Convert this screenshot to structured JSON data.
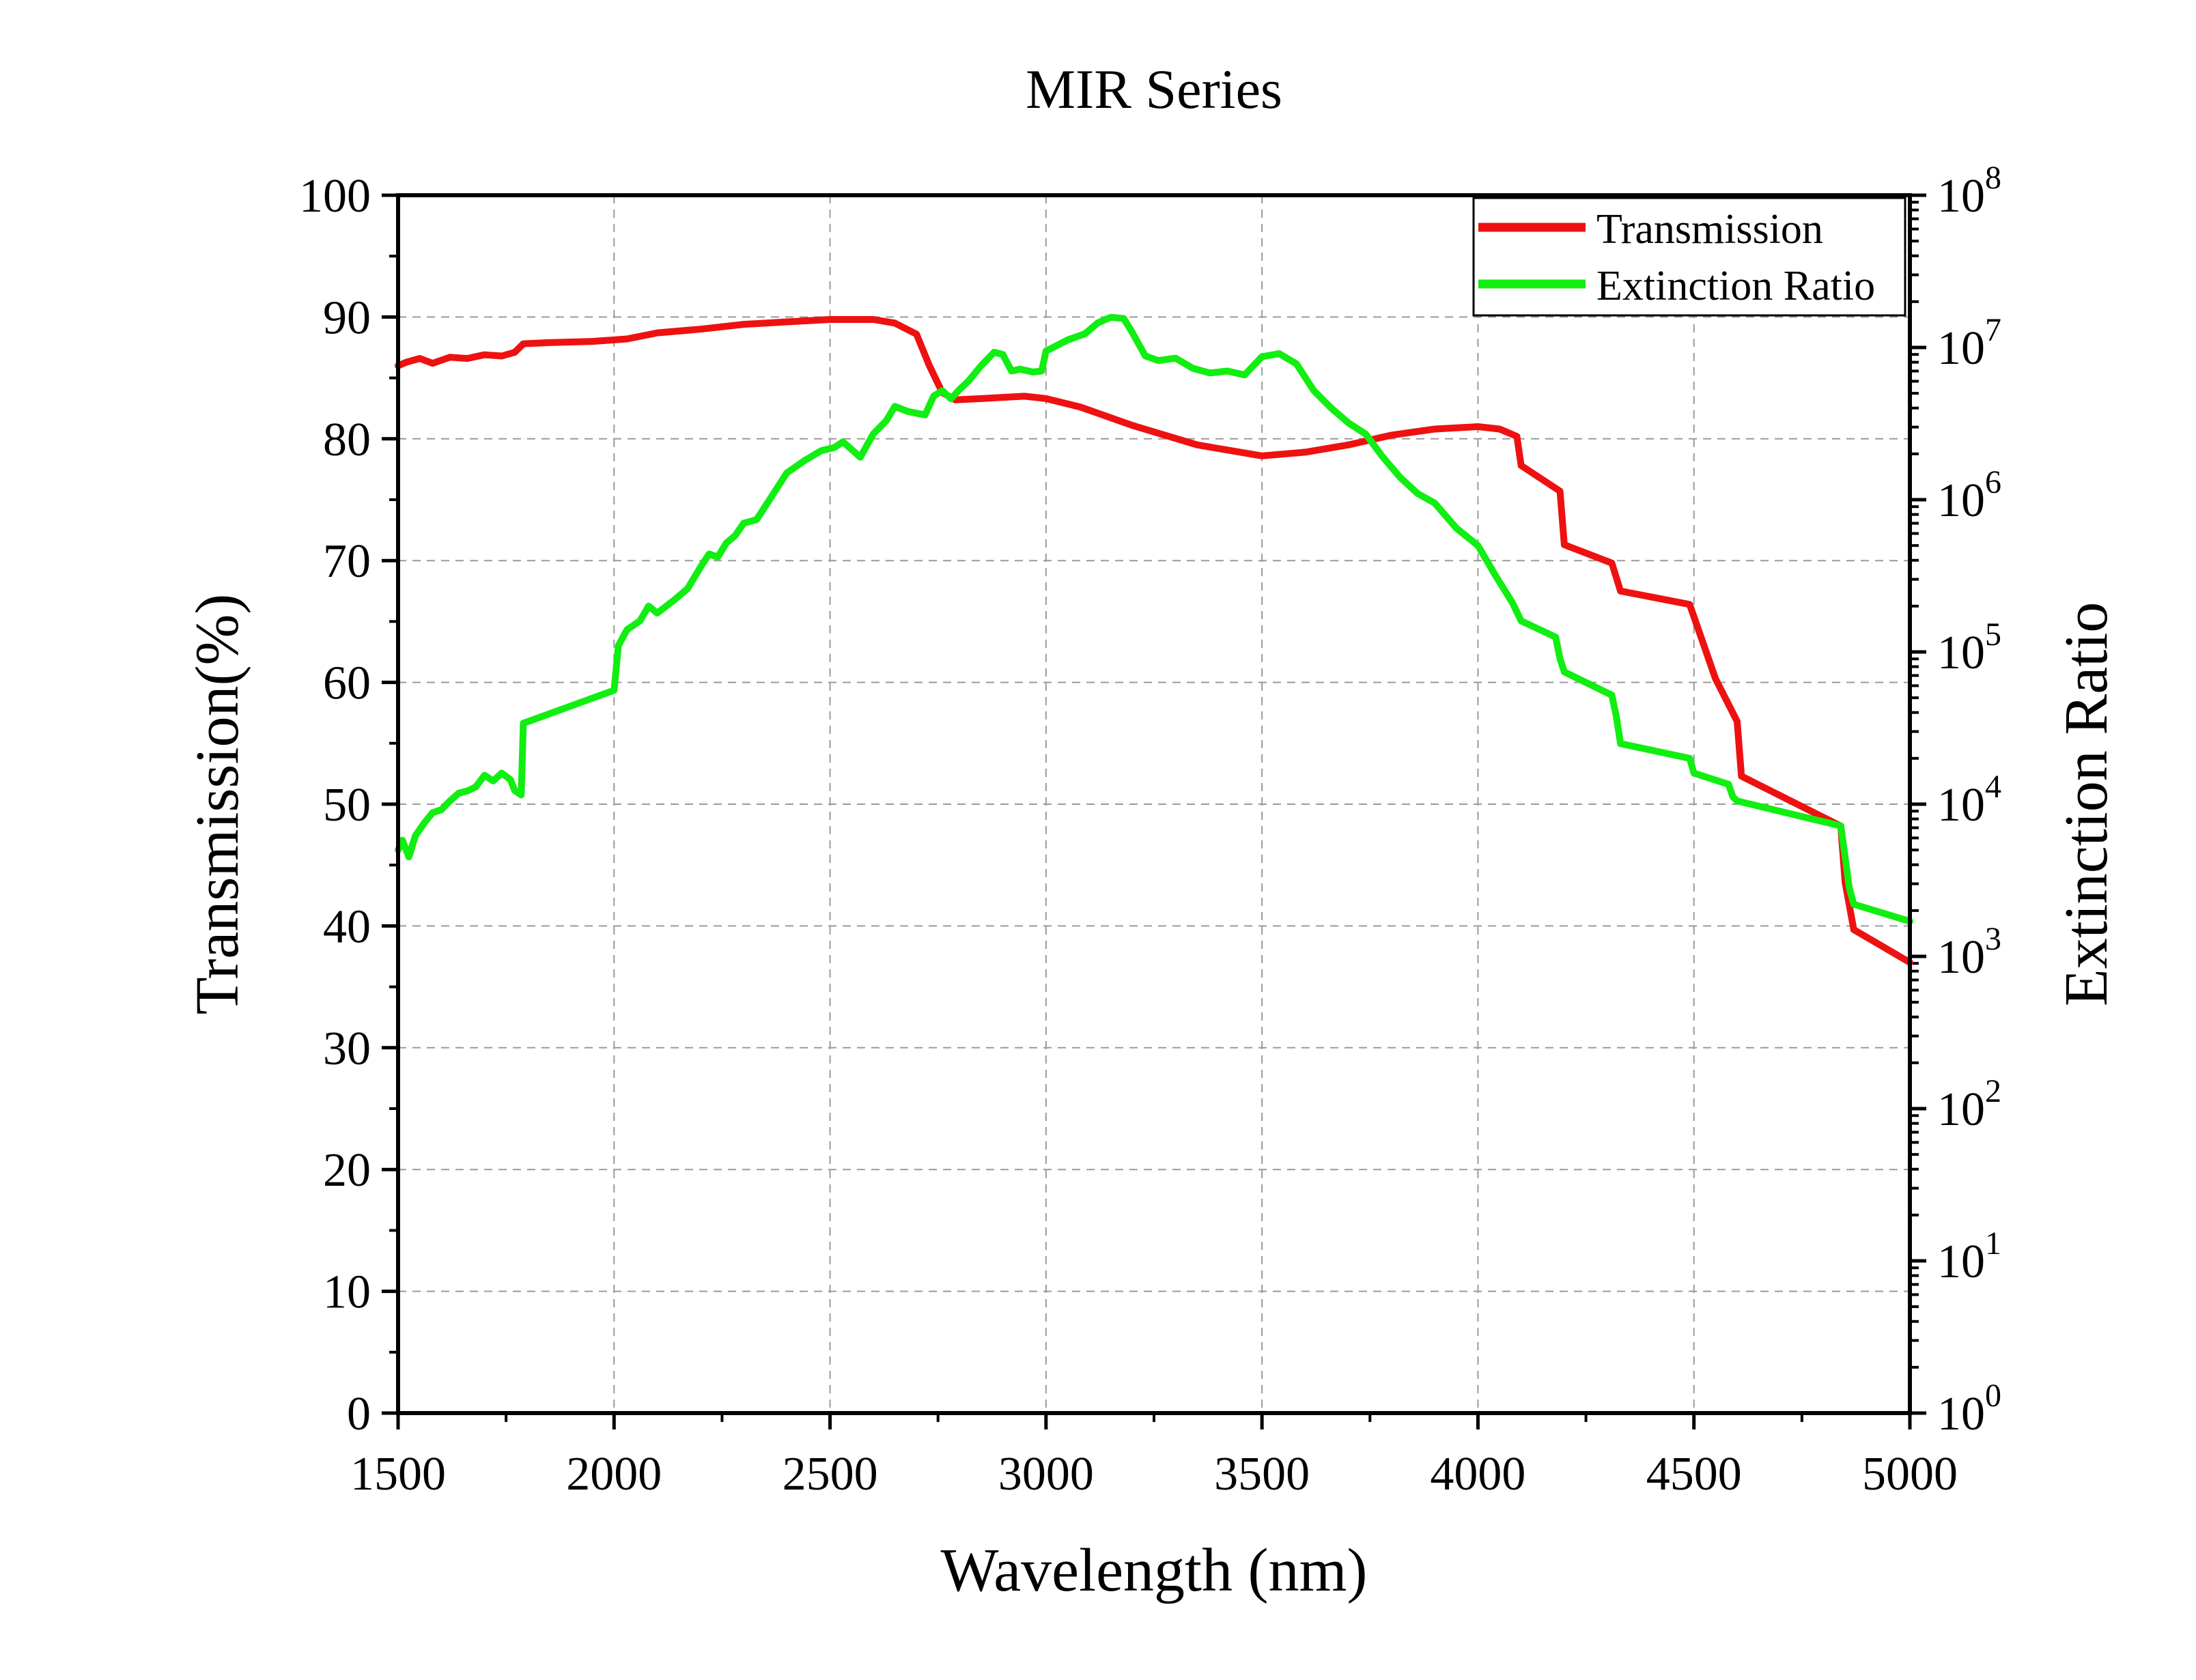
{
  "chart_data": {
    "type": "line",
    "title": "MIR Series",
    "xlabel": "Wavelength (nm)",
    "ylabel": "Transmission(%)",
    "y2label": "Extinction Ratio",
    "xlim": [
      1500,
      5000
    ],
    "ylim": [
      0,
      100
    ],
    "y2lim": [
      1,
      100000000
    ],
    "y2scale": "log",
    "grid": true,
    "legend_position": "top-right",
    "x_ticks": [
      "1500",
      "2000",
      "2500",
      "3000",
      "3500",
      "4000",
      "4500",
      "5000"
    ],
    "y_ticks": [
      "0",
      "10",
      "20",
      "30",
      "40",
      "50",
      "60",
      "70",
      "80",
      "90",
      "100"
    ],
    "y2_ticks": [
      {
        "base": "10",
        "exp": "0"
      },
      {
        "base": "10",
        "exp": "1"
      },
      {
        "base": "10",
        "exp": "2"
      },
      {
        "base": "10",
        "exp": "3"
      },
      {
        "base": "10",
        "exp": "4"
      },
      {
        "base": "10",
        "exp": "5"
      },
      {
        "base": "10",
        "exp": "6"
      },
      {
        "base": "10",
        "exp": "7"
      },
      {
        "base": "10",
        "exp": "8"
      }
    ],
    "series": [
      {
        "name": "Transmission",
        "axis": "left",
        "color": "#ee1111",
        "x": [
          1500,
          1520,
          1550,
          1580,
          1620,
          1660,
          1700,
          1740,
          1770,
          1790,
          1850,
          1950,
          2030,
          2100,
          2200,
          2300,
          2400,
          2500,
          2600,
          2650,
          2700,
          2730,
          2760,
          2790,
          2850,
          2950,
          3000,
          3080,
          3200,
          3350,
          3500,
          3600,
          3700,
          3800,
          3900,
          4000,
          4050,
          4090,
          4100,
          4190,
          4200,
          4310,
          4330,
          4490,
          4500,
          4550,
          4600,
          4610,
          4840,
          4850,
          4870,
          5000
        ],
        "values": [
          86,
          86.3,
          86.6,
          86.2,
          86.7,
          86.6,
          86.9,
          86.8,
          87.1,
          87.8,
          87.9,
          88.0,
          88.2,
          88.7,
          89.0,
          89.4,
          89.6,
          89.8,
          89.8,
          89.5,
          88.6,
          86,
          83.8,
          83.2,
          83.3,
          83.5,
          83.3,
          82.6,
          81.1,
          79.5,
          78.6,
          78.9,
          79.5,
          80.3,
          80.8,
          81,
          80.8,
          80.2,
          77.8,
          75.7,
          71.3,
          69.8,
          67.5,
          66.4,
          65.4,
          60.3,
          56.8,
          52.3,
          48.2,
          43.6,
          39.7,
          37
        ]
      },
      {
        "name": "Extinction Ratio",
        "axis": "right",
        "color": "#11ee11",
        "x": [
          1500,
          1510,
          1525,
          1540,
          1560,
          1580,
          1600,
          1620,
          1640,
          1660,
          1680,
          1700,
          1720,
          1740,
          1760,
          1770,
          1785,
          1790,
          2000,
          2010,
          2030,
          2060,
          2080,
          2100,
          2140,
          2170,
          2200,
          2220,
          2240,
          2260,
          2280,
          2300,
          2330,
          2360,
          2400,
          2440,
          2480,
          2510,
          2530,
          2570,
          2600,
          2630,
          2650,
          2680,
          2720,
          2740,
          2760,
          2780,
          2800,
          2820,
          2850,
          2880,
          2900,
          2920,
          2940,
          2970,
          2990,
          3000,
          3010,
          3050,
          3090,
          3120,
          3150,
          3180,
          3200,
          3230,
          3260,
          3300,
          3340,
          3380,
          3420,
          3460,
          3500,
          3540,
          3580,
          3620,
          3660,
          3700,
          3740,
          3780,
          3820,
          3860,
          3900,
          3950,
          4000,
          4040,
          4080,
          4100,
          4180,
          4190,
          4200,
          4310,
          4320,
          4330,
          4490,
          4500,
          4580,
          4590,
          4600,
          4840,
          4850,
          4860,
          4870,
          5000
        ],
        "values": [
          5000,
          5800,
          4500,
          6200,
          7500,
          8800,
          9200,
          10500,
          11800,
          12200,
          13000,
          15500,
          14200,
          16000,
          14500,
          12300,
          11500,
          34000,
          56000,
          110000,
          140000,
          160000,
          200000,
          180000,
          220000,
          260000,
          360000,
          440000,
          420000,
          520000,
          580000,
          700000,
          740000,
          1000000,
          1500000,
          1800000,
          2100000,
          2200000,
          2400000,
          1900000,
          2700000,
          3300000,
          4100000,
          3800000,
          3600000,
          4800000,
          5200000,
          4600000,
          5300000,
          6000000,
          7600000,
          9300000,
          9000000,
          7000000,
          7200000,
          6900000,
          7000000,
          9500000,
          9800000,
          11200000,
          12300000,
          14500000,
          15800000,
          15500000,
          12500000,
          8800000,
          8200000,
          8500000,
          7300000,
          6800000,
          7000000,
          6600000,
          8700000,
          9100000,
          7800000,
          5200000,
          4000000,
          3200000,
          2700000,
          1900000,
          1400000,
          1100000,
          950000,
          650000,
          500000,
          320000,
          210000,
          160000,
          125000,
          90000,
          74000,
          52000,
          38000,
          25000,
          20000,
          16000,
          13500,
          11200,
          10500,
          7200,
          4500,
          2800,
          2200,
          1700
        ]
      }
    ]
  }
}
